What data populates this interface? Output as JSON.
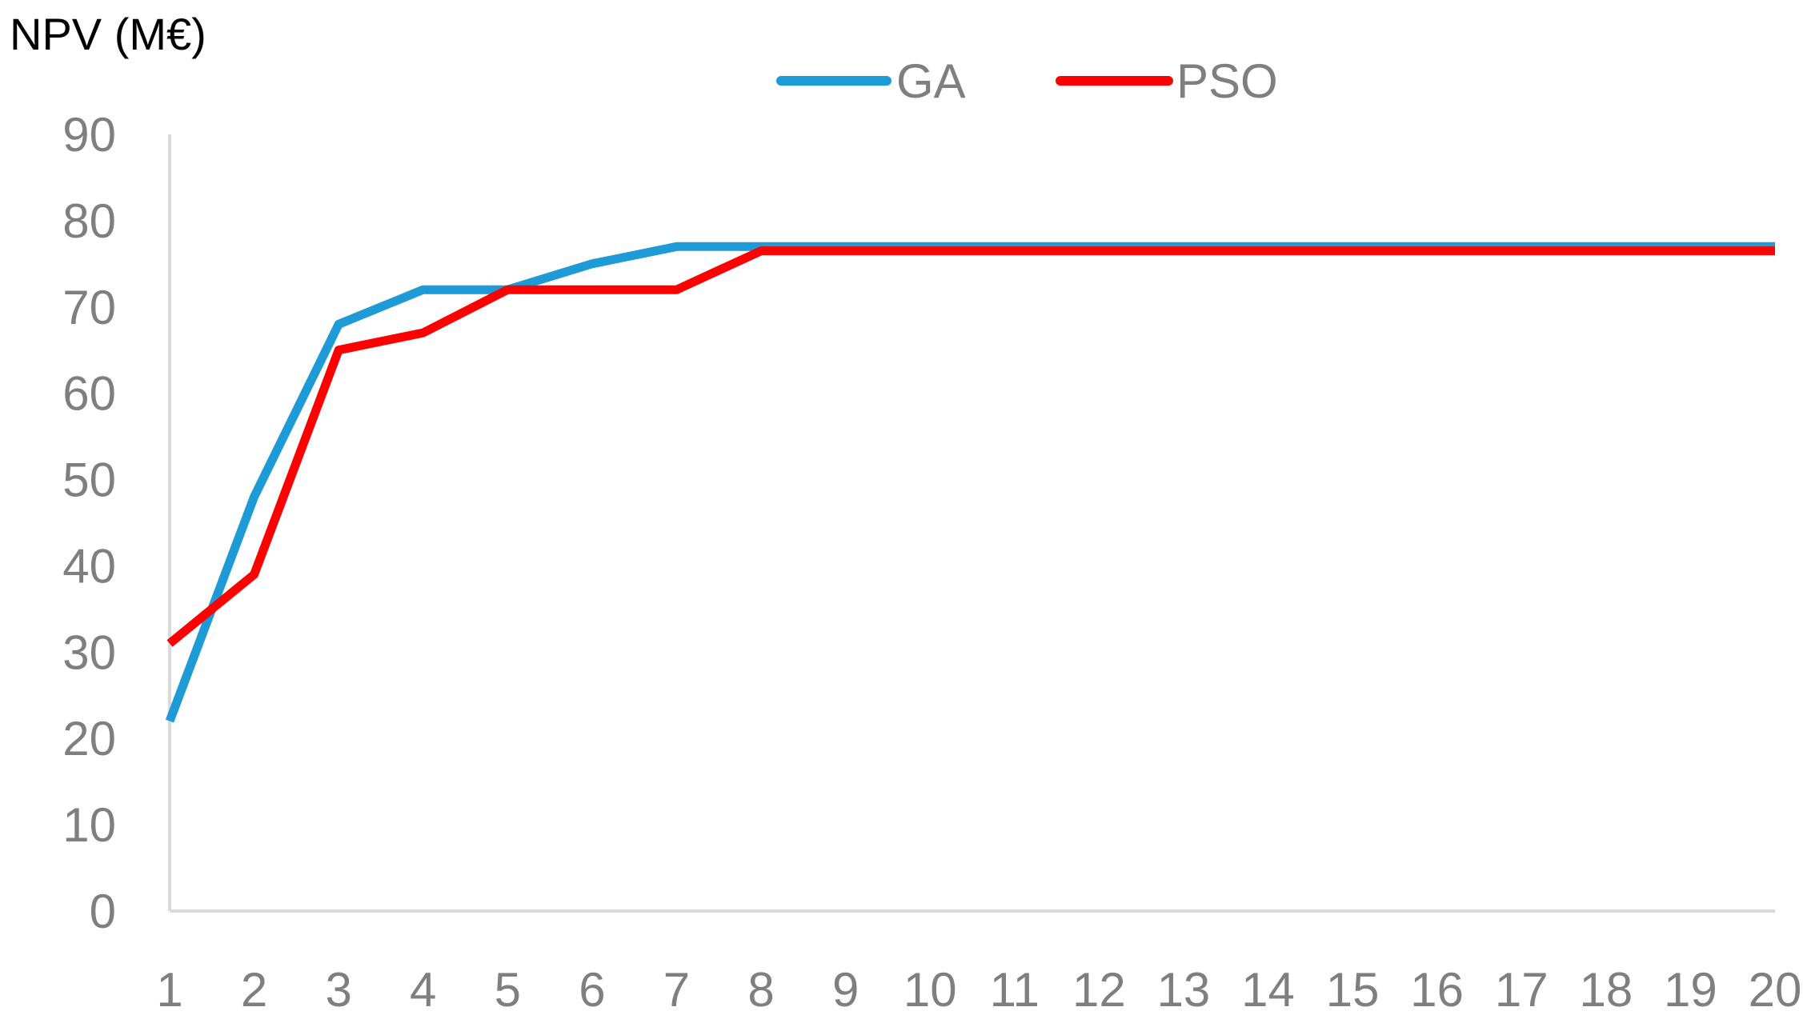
{
  "chart_data": {
    "type": "line",
    "title": "",
    "ylabel": "NPV (M€)",
    "xlabel": "",
    "x": [
      1,
      2,
      3,
      4,
      5,
      6,
      7,
      8,
      9,
      10,
      11,
      12,
      13,
      14,
      15,
      16,
      17,
      18,
      19,
      20
    ],
    "x_tick_labels": [
      "1",
      "2",
      "3",
      "4",
      "5",
      "6",
      "7",
      "8",
      "9",
      "10",
      "11",
      "12",
      "13",
      "14",
      "15",
      "16",
      "17",
      "18",
      "19",
      "20"
    ],
    "ylim": [
      0,
      90
    ],
    "y_ticks": [
      0,
      10,
      20,
      30,
      40,
      50,
      60,
      70,
      80,
      90
    ],
    "y_tick_labels": [
      "0",
      "10",
      "20",
      "30",
      "40",
      "50",
      "60",
      "70",
      "80",
      "90"
    ],
    "grid": false,
    "legend_position": "top-center",
    "series": [
      {
        "name": "GA",
        "color": "#1e9ad6",
        "values": [
          22,
          48,
          68,
          72,
          72,
          75,
          77,
          77,
          77,
          77,
          77,
          77,
          77,
          77,
          77,
          77,
          77,
          77,
          77,
          77
        ]
      },
      {
        "name": "PSO",
        "color": "#ff0000",
        "values": [
          31,
          39,
          65,
          67,
          72,
          72,
          72,
          76.5,
          76.5,
          76.5,
          76.5,
          76.5,
          76.5,
          76.5,
          76.5,
          76.5,
          76.5,
          76.5,
          76.5,
          76.5
        ]
      }
    ]
  }
}
